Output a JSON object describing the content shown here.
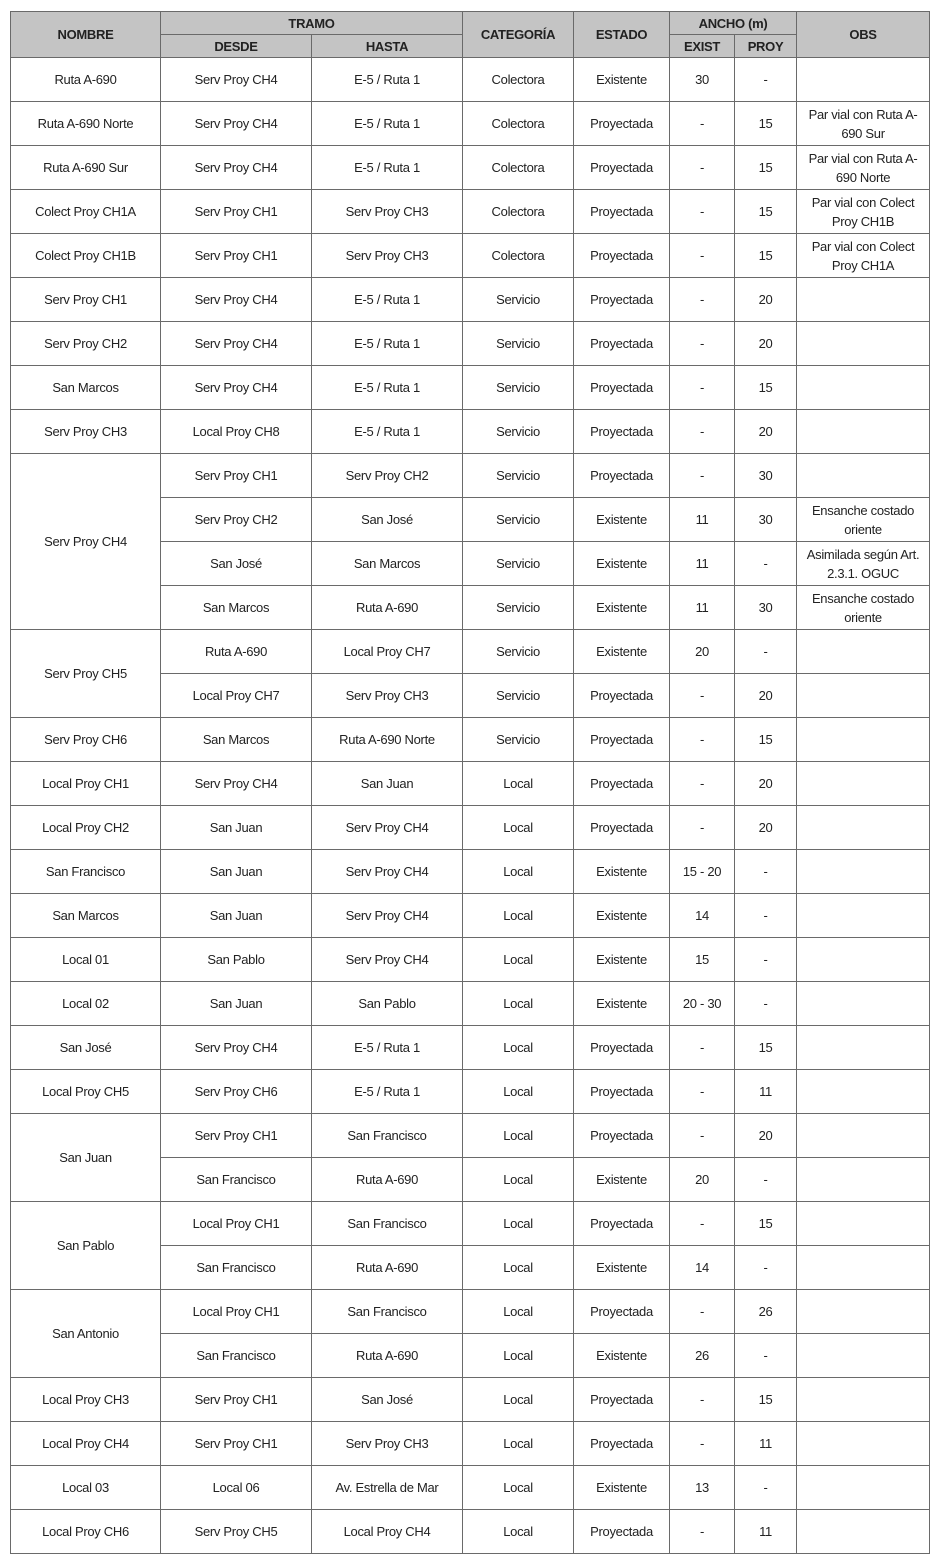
{
  "header": {
    "nombre": "NOMBRE",
    "tramo": "TRAMO",
    "desde": "DESDE",
    "hasta": "HASTA",
    "categoria": "CATEGORÍA",
    "estado": "ESTADO",
    "ancho": "ANCHO (m)",
    "exist": "EXIST",
    "proy": "PROY",
    "obs": "OBS"
  },
  "groups": [
    {
      "nombre": "Ruta A-690",
      "tramos": [
        [
          "Serv Proy CH4",
          "E-5 / Ruta 1",
          "Colectora",
          "Existente",
          "30",
          "-"
        ]
      ]
    },
    {
      "nombre": "Ruta A-690 Norte",
      "tramos": [
        [
          "Serv Proy CH4",
          "E-5 / Ruta 1",
          "Colectora",
          "Proyectada",
          "-",
          "15",
          "Par vial con Ruta A-690 Sur"
        ]
      ]
    },
    {
      "nombre": "Ruta A-690 Sur",
      "tramos": [
        [
          "Serv Proy CH4",
          "E-5 / Ruta 1",
          "Colectora",
          "Proyectada",
          "-",
          "15",
          "Par vial con Ruta A-690 Norte"
        ]
      ]
    },
    {
      "nombre": "Colect Proy CH1A",
      "tramos": [
        [
          "Serv Proy CH1",
          "Serv Proy CH3",
          "Colectora",
          "Proyectada",
          "-",
          "15",
          "Par vial con Colect Proy CH1B"
        ]
      ]
    },
    {
      "nombre": "Colect Proy CH1B",
      "tramos": [
        [
          "Serv Proy CH1",
          "Serv Proy CH3",
          "Colectora",
          "Proyectada",
          "-",
          "15",
          "Par vial con Colect Proy CH1A"
        ]
      ]
    },
    {
      "nombre": "Serv Proy CH1",
      "tramos": [
        [
          "Serv Proy CH4",
          "E-5 / Ruta 1",
          "Servicio",
          "Proyectada",
          "-",
          "20"
        ]
      ]
    },
    {
      "nombre": "Serv Proy CH2",
      "tramos": [
        [
          "Serv Proy CH4",
          "E-5 / Ruta 1",
          "Servicio",
          "Proyectada",
          "-",
          "20"
        ]
      ]
    },
    {
      "nombre": "San Marcos",
      "tramos": [
        [
          "Serv Proy CH4",
          "E-5 / Ruta 1",
          "Servicio",
          "Proyectada",
          "-",
          "15"
        ]
      ]
    },
    {
      "nombre": "Serv Proy CH3",
      "tramos": [
        [
          "Local Proy CH8",
          "E-5 / Ruta 1",
          "Servicio",
          "Proyectada",
          "-",
          "20"
        ]
      ]
    },
    {
      "nombre": "Serv Proy CH4",
      "tramos": [
        [
          "Serv Proy CH1",
          "Serv Proy CH2",
          "Servicio",
          "Proyectada",
          "-",
          "30"
        ],
        [
          "Serv Proy CH2",
          "San José",
          "Servicio",
          "Existente",
          "11",
          "30",
          "Ensanche costado oriente"
        ],
        [
          "San José",
          "San Marcos",
          "Servicio",
          "Existente",
          "11",
          "-",
          "Asimilada según Art. 2.3.1. OGUC"
        ],
        [
          "San Marcos",
          "Ruta A-690",
          "Servicio",
          "Existente",
          "11",
          "30",
          "Ensanche costado oriente"
        ]
      ]
    },
    {
      "nombre": "Serv Proy CH5",
      "tramos": [
        [
          "Ruta A-690",
          "Local Proy CH7",
          "Servicio",
          "Existente",
          "20",
          "-"
        ],
        [
          "Local Proy CH7",
          "Serv Proy CH3",
          "Servicio",
          "Proyectada",
          "-",
          "20"
        ]
      ]
    },
    {
      "nombre": "Serv Proy CH6",
      "tramos": [
        [
          "San Marcos",
          "Ruta A-690 Norte",
          "Servicio",
          "Proyectada",
          "-",
          "15"
        ]
      ]
    },
    {
      "nombre": "Local Proy CH1",
      "tramos": [
        [
          "Serv Proy CH4",
          "San Juan",
          "Local",
          "Proyectada",
          "-",
          "20"
        ]
      ]
    },
    {
      "nombre": "Local Proy CH2",
      "tramos": [
        [
          "San Juan",
          "Serv Proy CH4",
          "Local",
          "Proyectada",
          "-",
          "20"
        ]
      ]
    },
    {
      "nombre": "San Francisco",
      "tramos": [
        [
          "San Juan",
          "Serv Proy CH4",
          "Local",
          "Existente",
          "15 - 20",
          "-"
        ]
      ]
    },
    {
      "nombre": "San Marcos",
      "tramos": [
        [
          "San Juan",
          "Serv Proy CH4",
          "Local",
          "Existente",
          "14",
          "-"
        ]
      ]
    },
    {
      "nombre": "Local 01",
      "tramos": [
        [
          "San Pablo",
          "Serv Proy CH4",
          "Local",
          "Existente",
          "15",
          "-"
        ]
      ]
    },
    {
      "nombre": "Local 02",
      "tramos": [
        [
          "San Juan",
          "San Pablo",
          "Local",
          "Existente",
          "20 - 30",
          "-"
        ]
      ]
    },
    {
      "nombre": "San José",
      "tramos": [
        [
          "Serv Proy CH4",
          "E-5 / Ruta 1",
          "Local",
          "Proyectada",
          "-",
          "15"
        ]
      ]
    },
    {
      "nombre": "Local Proy CH5",
      "tramos": [
        [
          "Serv Proy CH6",
          "E-5 / Ruta 1",
          "Local",
          "Proyectada",
          "-",
          "11"
        ]
      ]
    },
    {
      "nombre": "San Juan",
      "tramos": [
        [
          "Serv Proy CH1",
          "San Francisco",
          "Local",
          "Proyectada",
          "-",
          "20"
        ],
        [
          "San Francisco",
          "Ruta A-690",
          "Local",
          "Existente",
          "20",
          "-"
        ]
      ]
    },
    {
      "nombre": "San Pablo",
      "tramos": [
        [
          "Local Proy CH1",
          "San Francisco",
          "Local",
          "Proyectada",
          "-",
          "15"
        ],
        [
          "San Francisco",
          "Ruta A-690",
          "Local",
          "Existente",
          "14",
          "-"
        ]
      ]
    },
    {
      "nombre": "San Antonio",
      "tramos": [
        [
          "Local Proy CH1",
          "San Francisco",
          "Local",
          "Proyectada",
          "-",
          "26"
        ],
        [
          "San Francisco",
          "Ruta A-690",
          "Local",
          "Existente",
          "26",
          "-"
        ]
      ]
    },
    {
      "nombre": "Local Proy CH3",
      "tramos": [
        [
          "Serv Proy CH1",
          "San José",
          "Local",
          "Proyectada",
          "-",
          "15"
        ]
      ]
    },
    {
      "nombre": "Local Proy CH4",
      "tramos": [
        [
          "Serv Proy CH1",
          "Serv Proy CH3",
          "Local",
          "Proyectada",
          "-",
          "11"
        ]
      ]
    },
    {
      "nombre": "Local 03",
      "tramos": [
        [
          "Local 06",
          "Av. Estrella de Mar",
          "Local",
          "Existente",
          "13",
          "-"
        ]
      ]
    },
    {
      "nombre": "Local Proy CH6",
      "tramos": [
        [
          "Serv Proy CH5",
          "Local Proy CH4",
          "Local",
          "Proyectada",
          "-",
          "11"
        ]
      ]
    }
  ]
}
